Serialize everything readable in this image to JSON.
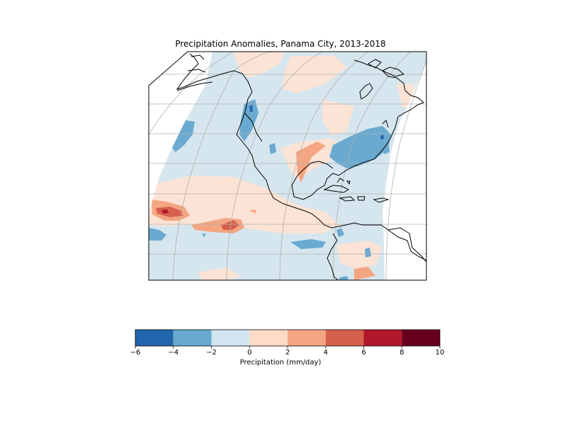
{
  "figure": {
    "title": "Precipitation Anomalies, Panama City, 2013-2018"
  },
  "colorbar": {
    "label": "Precipitation (mm/day)",
    "bins": [
      {
        "from": -6,
        "to": -4,
        "color": "#2166ac"
      },
      {
        "from": -4,
        "to": -2,
        "color": "#67a9cf"
      },
      {
        "from": -2,
        "to": 0,
        "color": "#d1e5f0"
      },
      {
        "from": 0,
        "to": 2,
        "color": "#fddbc7"
      },
      {
        "from": 2,
        "to": 4,
        "color": "#f4a582"
      },
      {
        "from": 4,
        "to": 6,
        "color": "#d6604d"
      },
      {
        "from": 6,
        "to": 8,
        "color": "#b2182b"
      },
      {
        "from": 8,
        "to": 10,
        "color": "#67001f"
      }
    ],
    "ticks": [
      "−6",
      "−4",
      "−2",
      "0",
      "2",
      "4",
      "6",
      "8",
      "10"
    ]
  },
  "map": {
    "background_color": "#d6e6ef",
    "coastline_color": "#000000",
    "gridline_color": "#b0b0b0"
  }
}
